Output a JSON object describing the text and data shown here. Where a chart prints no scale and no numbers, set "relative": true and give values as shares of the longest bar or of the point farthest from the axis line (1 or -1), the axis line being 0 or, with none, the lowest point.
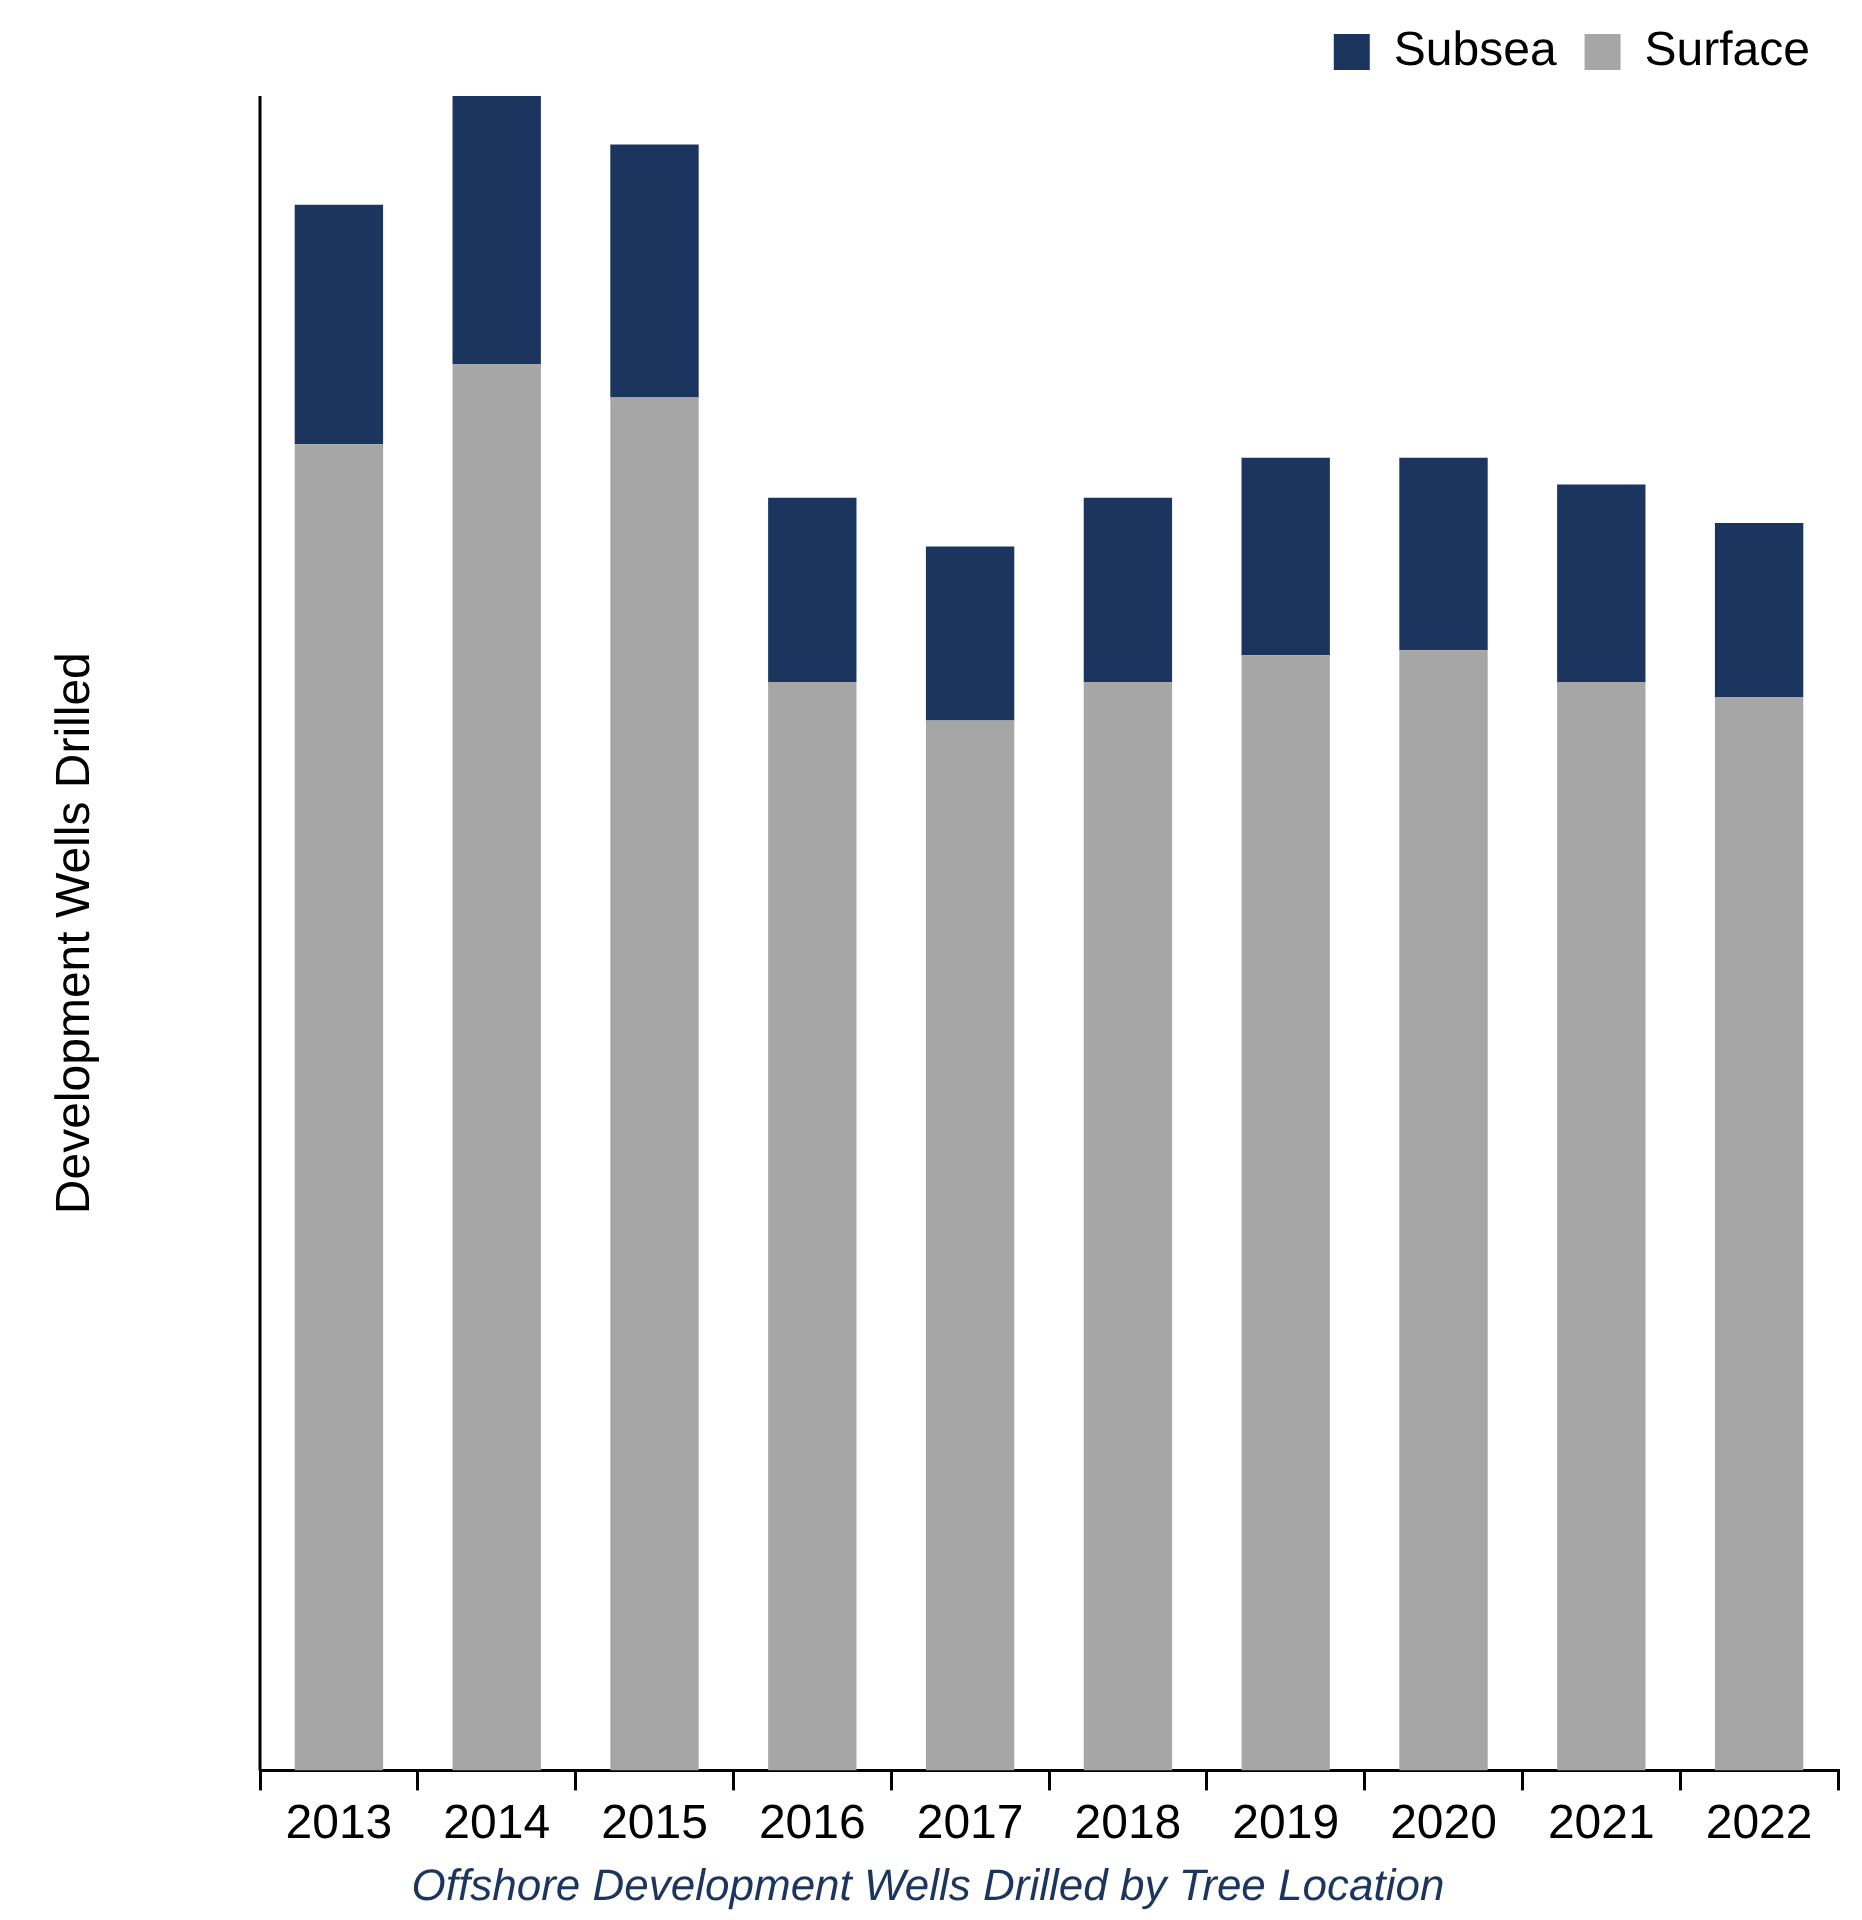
{
  "chart_data": {
    "type": "bar",
    "stacked": true,
    "relative": true,
    "ylabel": "Development Wells Drilled",
    "annotations": [
      "Offshore Development Wells Drilled by Tree Location"
    ],
    "categories": [
      "2013",
      "2014",
      "2015",
      "2016",
      "2017",
      "2018",
      "2019",
      "2020",
      "2021",
      "2022"
    ],
    "series": [
      {
        "name": "Surface",
        "color": "#a6a6a6",
        "values": [
          0.792,
          0.84,
          0.82,
          0.65,
          0.627,
          0.65,
          0.666,
          0.669,
          0.65,
          0.641
        ]
      },
      {
        "name": "Subsea",
        "color": "#1c355e",
        "values": [
          0.143,
          0.16,
          0.151,
          0.11,
          0.104,
          0.11,
          0.118,
          0.115,
          0.118,
          0.104
        ]
      }
    ],
    "legend": "top right",
    "grid": false
  }
}
